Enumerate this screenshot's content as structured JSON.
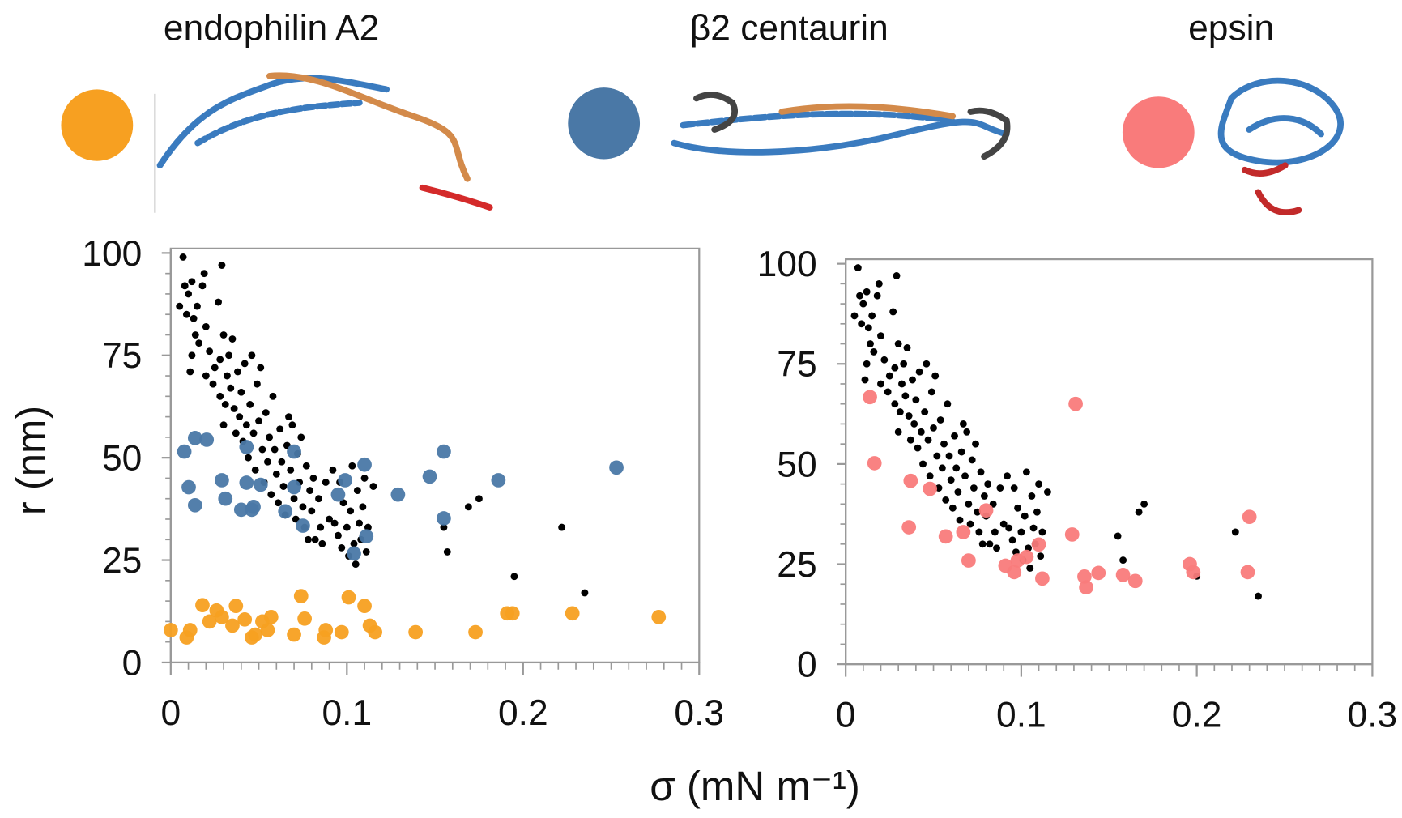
{
  "chart_data": [
    {
      "type": "scatter",
      "ylabel": "r (nm)",
      "xlabel": "σ (mN m⁻¹)",
      "xlim": [
        0,
        0.3
      ],
      "xticks": [
        0,
        0.1,
        0.2,
        0.3
      ],
      "ylim": [
        0,
        100
      ],
      "yticks": [
        0,
        25,
        50,
        75,
        100
      ],
      "series": [
        {
          "color": "#000000",
          "x": [
            0.005,
            0.007,
            0.008,
            0.009,
            0.01,
            0.012,
            0.013,
            0.014,
            0.012,
            0.011,
            0.015,
            0.016,
            0.018,
            0.019,
            0.02,
            0.02,
            0.022,
            0.024,
            0.025,
            0.027,
            0.028,
            0.028,
            0.029,
            0.03,
            0.03,
            0.031,
            0.032,
            0.033,
            0.034,
            0.035,
            0.036,
            0.037,
            0.038,
            0.039,
            0.04,
            0.041,
            0.042,
            0.043,
            0.044,
            0.045,
            0.046,
            0.047,
            0.048,
            0.049,
            0.05,
            0.051,
            0.052,
            0.053,
            0.054,
            0.055,
            0.056,
            0.057,
            0.058,
            0.059,
            0.06,
            0.061,
            0.062,
            0.063,
            0.064,
            0.065,
            0.066,
            0.067,
            0.068,
            0.069,
            0.07,
            0.071,
            0.072,
            0.073,
            0.074,
            0.075,
            0.076,
            0.077,
            0.078,
            0.079,
            0.08,
            0.081,
            0.082,
            0.084,
            0.085,
            0.086,
            0.088,
            0.09,
            0.092,
            0.093,
            0.095,
            0.096,
            0.097,
            0.098,
            0.1,
            0.101,
            0.102,
            0.103,
            0.104,
            0.105,
            0.106,
            0.107,
            0.108,
            0.109,
            0.11,
            0.111,
            0.112,
            0.115,
            0.155,
            0.157,
            0.169,
            0.175,
            0.195,
            0.222,
            0.235
          ],
          "values": [
            87,
            99,
            92,
            85,
            90,
            93,
            84,
            80,
            75,
            71,
            87,
            78,
            92,
            95,
            82,
            70,
            76,
            68,
            72,
            88,
            74,
            65,
            97,
            80,
            58,
            63,
            70,
            75,
            67,
            79,
            62,
            56,
            71,
            60,
            66,
            54,
            73,
            58,
            50,
            63,
            75,
            56,
            47,
            68,
            59,
            72,
            52,
            44,
            61,
            49,
            55,
            41,
            65,
            52,
            46,
            39,
            57,
            49,
            43,
            36,
            53,
            60,
            47,
            58,
            40,
            35,
            51,
            44,
            55,
            38,
            33,
            48,
            30,
            42,
            37,
            45,
            30,
            40,
            33,
            29,
            44,
            35,
            47,
            34,
            31,
            44,
            28,
            39,
            33,
            26,
            37,
            48,
            29,
            24,
            42,
            34,
            30,
            38,
            45,
            27,
            33,
            43,
            33,
            27,
            38,
            40,
            21,
            33,
            17
          ]
        },
        {
          "name": "β2 centaurin",
          "color": "#4a78a6",
          "x": [
            0.0077,
            0.0102,
            0.0138,
            0.0138,
            0.0204,
            0.029,
            0.031,
            0.04,
            0.043,
            0.046,
            0.047,
            0.051,
            0.043,
            0.065,
            0.07,
            0.07,
            0.075,
            0.095,
            0.099,
            0.104,
            0.11,
            0.111,
            0.129,
            0.147,
            0.155,
            0.155,
            0.186,
            0.253
          ],
          "values": [
            51.5,
            42.8,
            38.4,
            54.8,
            54.4,
            44.5,
            40,
            37.3,
            52.6,
            37.3,
            38,
            43.4,
            43.9,
            36.9,
            51.5,
            42.8,
            33.4,
            41,
            44.5,
            26.6,
            48.3,
            30.8,
            41,
            45.4,
            51.5,
            35.2,
            44.5,
            47.6
          ]
        },
        {
          "name": "endophilin A2",
          "color": "#f7a021",
          "x": [
            0,
            0.009,
            0.011,
            0.018,
            0.022,
            0.026,
            0.029,
            0.035,
            0.037,
            0.042,
            0.046,
            0.048,
            0.052,
            0.057,
            0.055,
            0.07,
            0.074,
            0.076,
            0.087,
            0.088,
            0.097,
            0.101,
            0.11,
            0.113,
            0.116,
            0.139,
            0.173,
            0.191,
            0.194,
            0.228,
            0.277
          ],
          "values": [
            7.9,
            6.1,
            7.9,
            14,
            10,
            12.7,
            11.1,
            9,
            13.8,
            10.5,
            6.1,
            6.8,
            10,
            11.1,
            7.9,
            6.8,
            16.2,
            10.7,
            6.1,
            7.9,
            7.4,
            15.9,
            13.8,
            9,
            7.4,
            7.4,
            7.4,
            12,
            12,
            12,
            11.1
          ]
        }
      ]
    },
    {
      "type": "scatter",
      "xlim": [
        0,
        0.3
      ],
      "xticks": [
        0,
        0.1,
        0.2,
        0.3
      ],
      "ylim": [
        0,
        100
      ],
      "yticks": [
        0,
        25,
        50,
        75,
        100
      ],
      "series": [
        {
          "color": "#000000",
          "x": [
            0.005,
            0.007,
            0.008,
            0.009,
            0.01,
            0.012,
            0.013,
            0.014,
            0.012,
            0.011,
            0.015,
            0.016,
            0.018,
            0.019,
            0.02,
            0.02,
            0.022,
            0.024,
            0.025,
            0.027,
            0.028,
            0.028,
            0.029,
            0.03,
            0.03,
            0.031,
            0.032,
            0.033,
            0.034,
            0.035,
            0.036,
            0.037,
            0.038,
            0.039,
            0.04,
            0.041,
            0.042,
            0.043,
            0.044,
            0.045,
            0.046,
            0.047,
            0.048,
            0.049,
            0.05,
            0.051,
            0.052,
            0.053,
            0.054,
            0.055,
            0.056,
            0.057,
            0.058,
            0.059,
            0.06,
            0.061,
            0.062,
            0.063,
            0.064,
            0.065,
            0.066,
            0.067,
            0.068,
            0.069,
            0.07,
            0.071,
            0.072,
            0.073,
            0.074,
            0.075,
            0.076,
            0.077,
            0.078,
            0.079,
            0.08,
            0.081,
            0.082,
            0.084,
            0.085,
            0.086,
            0.088,
            0.09,
            0.092,
            0.093,
            0.095,
            0.096,
            0.097,
            0.098,
            0.1,
            0.101,
            0.102,
            0.103,
            0.104,
            0.105,
            0.106,
            0.107,
            0.108,
            0.109,
            0.11,
            0.111,
            0.112,
            0.115,
            0.155,
            0.158,
            0.167,
            0.17,
            0.2,
            0.222,
            0.235
          ],
          "values": [
            87,
            99,
            92,
            85,
            90,
            93,
            84,
            80,
            75,
            71,
            87,
            78,
            92,
            95,
            82,
            70,
            76,
            68,
            72,
            88,
            74,
            65,
            97,
            80,
            58,
            63,
            70,
            75,
            67,
            79,
            62,
            56,
            71,
            60,
            66,
            54,
            73,
            58,
            50,
            63,
            75,
            56,
            47,
            68,
            59,
            72,
            52,
            44,
            61,
            49,
            55,
            41,
            65,
            52,
            46,
            39,
            57,
            49,
            43,
            36,
            53,
            60,
            47,
            58,
            40,
            35,
            51,
            44,
            55,
            38,
            33,
            48,
            30,
            42,
            37,
            45,
            30,
            40,
            33,
            29,
            44,
            35,
            47,
            34,
            31,
            44,
            28,
            39,
            33,
            26,
            37,
            48,
            29,
            24,
            42,
            34,
            30,
            38,
            45,
            27,
            33,
            43,
            32,
            26,
            38,
            40,
            22,
            33,
            17
          ]
        },
        {
          "name": "epsin",
          "color": "#f97b7b",
          "x": [
            0.0138,
            0.0164,
            0.037,
            0.036,
            0.048,
            0.057,
            0.067,
            0.07,
            0.08,
            0.091,
            0.096,
            0.098,
            0.103,
            0.11,
            0.112,
            0.129,
            0.131,
            0.136,
            0.137,
            0.144,
            0.158,
            0.165,
            0.196,
            0.198,
            0.23,
            0.229
          ],
          "values": [
            66.7,
            50.2,
            45.8,
            34.2,
            43.8,
            31.9,
            33,
            25.9,
            38.4,
            24.6,
            23,
            25.9,
            26.8,
            29.9,
            21.4,
            32.4,
            65,
            21.9,
            19.2,
            22.8,
            22.3,
            20.8,
            25,
            23,
            36.8,
            23
          ]
        }
      ]
    }
  ]
}
